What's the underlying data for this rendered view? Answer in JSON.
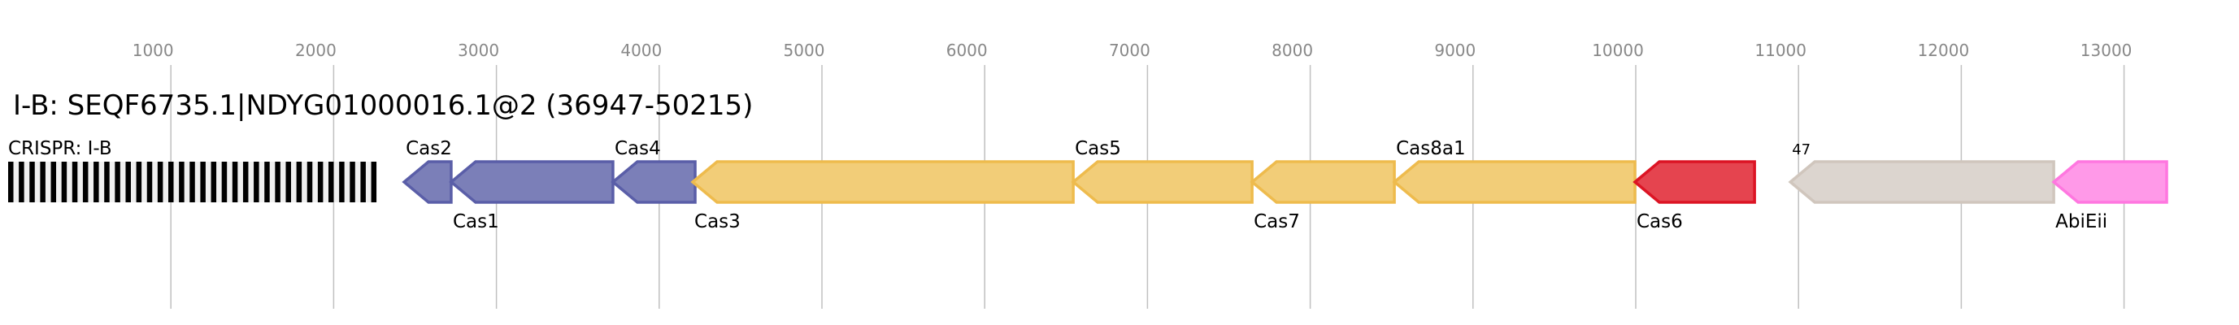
{
  "title": "I-B: SEQF6735.1|NDYG01000016.1@2 (36947-50215)",
  "axis": {
    "ticks": [
      1000,
      2000,
      3000,
      4000,
      5000,
      6000,
      7000,
      8000,
      9000,
      10000,
      11000,
      12000,
      13000
    ],
    "grid": true
  },
  "crispr": {
    "label": "CRISPR: I-B",
    "start": 0,
    "end": 2263,
    "repeats": 35
  },
  "genes": [
    {
      "name": "Cas2",
      "start": 2433,
      "end": 2722,
      "strand": "-",
      "label_pos": "top",
      "fill": "#7b7fb8",
      "stroke": "#5a5ea8"
    },
    {
      "name": "Cas1",
      "start": 2722,
      "end": 3716,
      "strand": "-",
      "label_pos": "bottom",
      "fill": "#7b7fb8",
      "stroke": "#5a5ea8"
    },
    {
      "name": "Cas4",
      "start": 3716,
      "end": 4221,
      "strand": "-",
      "label_pos": "top",
      "fill": "#7b7fb8",
      "stroke": "#5a5ea8"
    },
    {
      "name": "Cas3",
      "start": 4206,
      "end": 6544,
      "strand": "-",
      "label_pos": "bottom",
      "fill": "#f2cd78",
      "stroke": "#eebb4d"
    },
    {
      "name": "Cas5",
      "start": 6544,
      "end": 7643,
      "strand": "-",
      "label_pos": "top",
      "fill": "#f2cd78",
      "stroke": "#eebb4d"
    },
    {
      "name": "Cas7",
      "start": 7643,
      "end": 8517,
      "strand": "-",
      "label_pos": "bottom",
      "fill": "#f2cd78",
      "stroke": "#eebb4d"
    },
    {
      "name": "Cas8a1",
      "start": 8517,
      "end": 9995,
      "strand": "-",
      "label_pos": "top",
      "fill": "#f2cd78",
      "stroke": "#eebb4d"
    },
    {
      "name": "Cas6",
      "start": 9995,
      "end": 10730,
      "strand": "-",
      "label_pos": "bottom",
      "fill": "#e5444f",
      "stroke": "#dc1424"
    },
    {
      "name": "47",
      "start": 10950,
      "end": 12568,
      "strand": "-",
      "label_pos": "top-small",
      "fill": "#dcd5cf",
      "stroke": "#d0c6bd"
    },
    {
      "name": "AbiEii",
      "start": 12568,
      "end": 13262,
      "strand": "-",
      "label_pos": "bottom",
      "fill": "#ff99e8",
      "stroke": "#ff77e0"
    }
  ]
}
